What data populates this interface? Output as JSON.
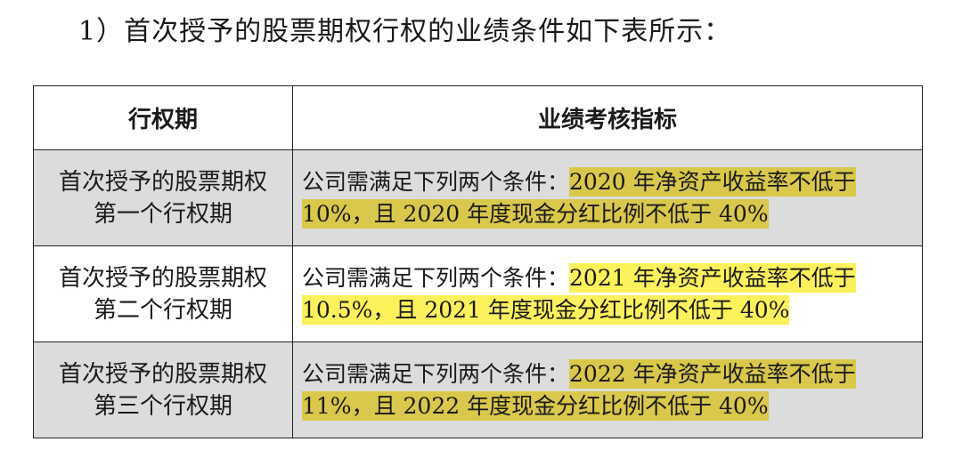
{
  "heading": "1）首次授予的股票期权行权的业绩条件如下表所示：",
  "table": {
    "headers": [
      "行权期",
      "业绩考核指标"
    ],
    "rows": [
      {
        "period_line1": "首次授予的股票期权",
        "period_line2": "第一个行权期",
        "condition_prefix": "公司需满足下列两个条件：",
        "condition_highlight_line1": "2020 年净资产收益率不低于",
        "condition_highlight_line2": "10%，且 2020 年度现金分红比例不低于 40%"
      },
      {
        "period_line1": "首次授予的股票期权",
        "period_line2": "第二个行权期",
        "condition_prefix": "公司需满足下列两个条件：",
        "condition_highlight_line1": "2021 年净资产收益率不低于",
        "condition_highlight_line2": "10.5%，且 2021 年度现金分红比例不低于 40%"
      },
      {
        "period_line1": "首次授予的股票期权",
        "period_line2": "第三个行权期",
        "condition_prefix": "公司需满足下列两个条件：",
        "condition_highlight_line1": "2022 年净资产收益率不低于",
        "condition_highlight_line2": "11%，且 2022 年度现金分红比例不低于 40%"
      }
    ]
  },
  "colors": {
    "shaded_row": "#dcdcdc",
    "highlight_dark": "#d9c84a",
    "highlight_bright": "#fbf15a"
  }
}
